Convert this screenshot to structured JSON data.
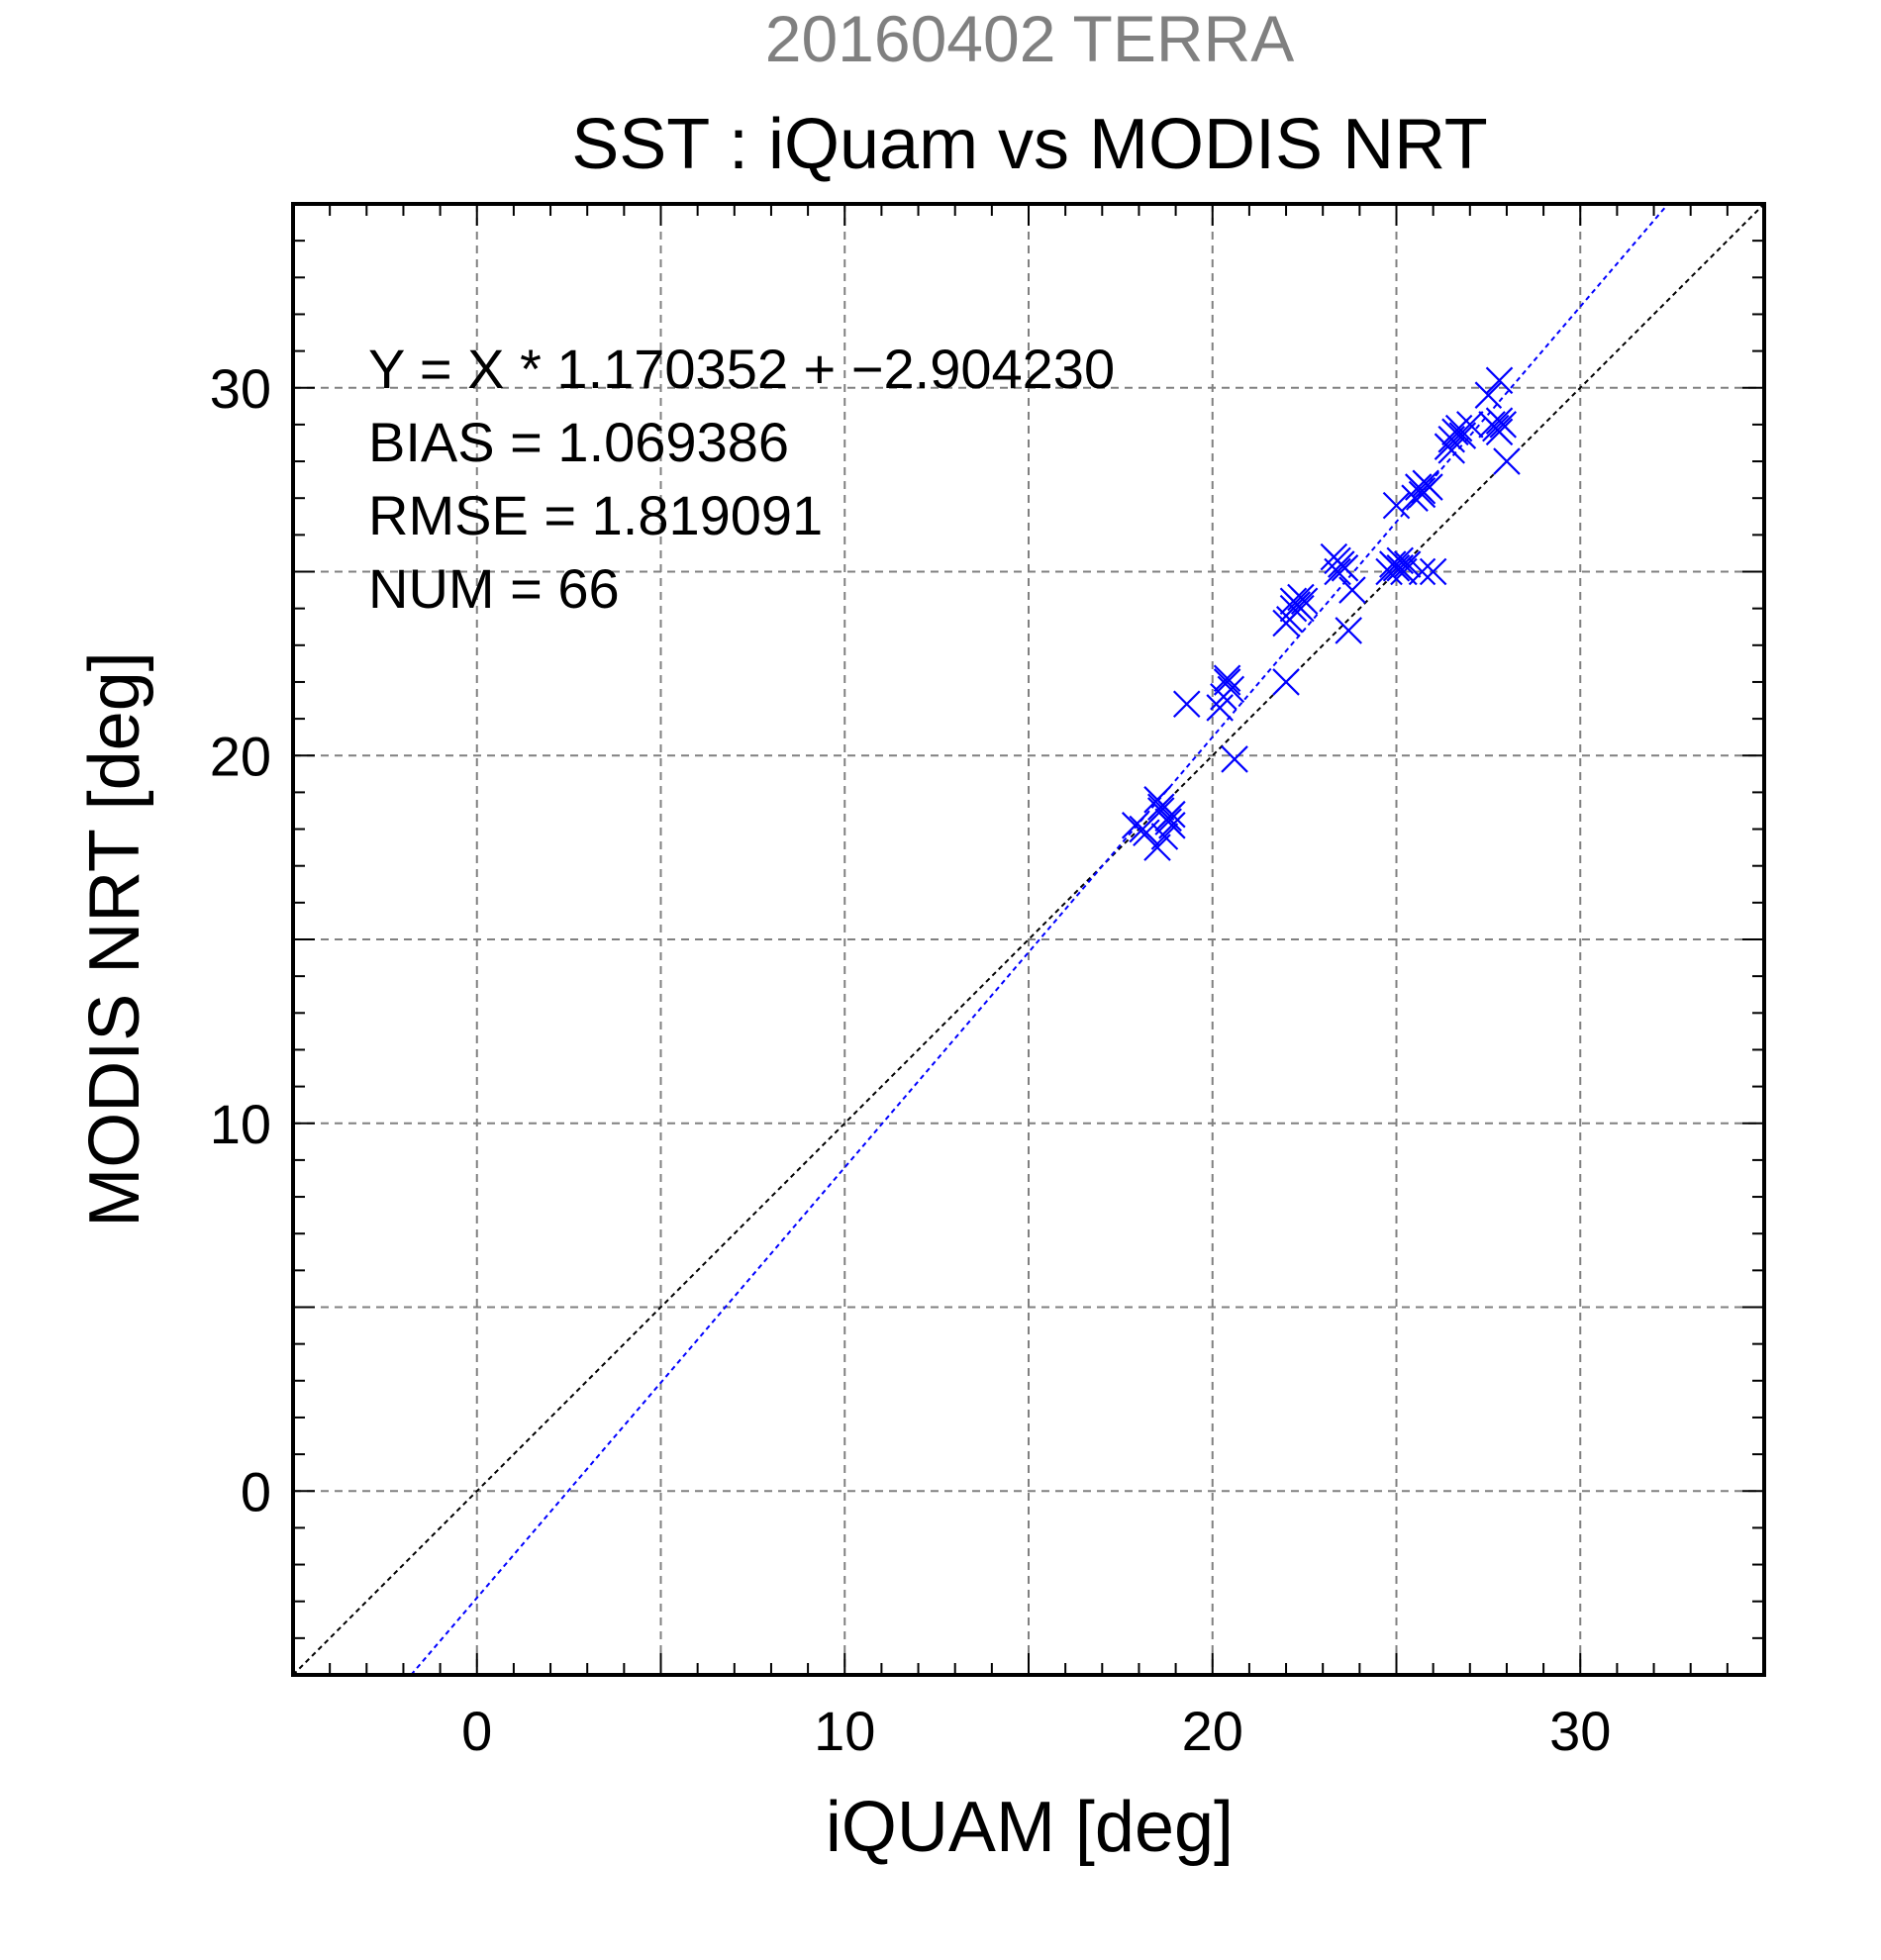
{
  "chart_data": {
    "type": "scatter",
    "title_top": "20160402 TERRA",
    "title": "SST : iQuam vs MODIS NRT",
    "xlabel": "iQUAM [deg]",
    "ylabel": "MODIS NRT [deg]",
    "xlim": [
      -5,
      35
    ],
    "ylim": [
      -5,
      35
    ],
    "grid": true,
    "x_ticks": [
      0,
      10,
      20,
      30
    ],
    "y_ticks": [
      0,
      10,
      20,
      30
    ],
    "grid_x": [
      0,
      5,
      10,
      15,
      20,
      25,
      30
    ],
    "grid_y": [
      0,
      5,
      10,
      15,
      20,
      25,
      30
    ],
    "stats": [
      "Y = X * 1.170352 + −2.904230",
      "BIAS = 1.069386",
      "RMSE = 1.819091",
      "NUM = 66"
    ],
    "lines": [
      {
        "name": "1:1",
        "slope": 1.0,
        "intercept": 0.0,
        "color": "#000000"
      },
      {
        "name": "fit",
        "slope": 1.170352,
        "intercept": -2.90423,
        "color": "#0000ff"
      }
    ],
    "marker_color": "#0000ff",
    "points": [
      [
        17.9,
        18.1
      ],
      [
        18.1,
        18.0
      ],
      [
        18.2,
        17.9
      ],
      [
        18.5,
        18.8
      ],
      [
        18.6,
        18.5
      ],
      [
        18.5,
        17.5
      ],
      [
        18.7,
        17.8
      ],
      [
        18.8,
        18.3
      ],
      [
        18.9,
        18.4
      ],
      [
        18.9,
        18.1
      ],
      [
        18.8,
        18.2
      ],
      [
        19.3,
        21.4
      ],
      [
        20.2,
        21.3
      ],
      [
        20.4,
        22.0
      ],
      [
        20.5,
        21.8
      ],
      [
        20.4,
        22.1
      ],
      [
        20.6,
        19.9
      ],
      [
        22.0,
        23.6
      ],
      [
        22.0,
        22.0
      ],
      [
        22.2,
        24.2
      ],
      [
        22.3,
        24.1
      ],
      [
        22.4,
        24.3
      ],
      [
        22.4,
        24.0
      ],
      [
        22.5,
        24.2
      ],
      [
        22.2,
        24.0
      ],
      [
        23.3,
        25.4
      ],
      [
        23.4,
        25.3
      ],
      [
        23.5,
        25.2
      ],
      [
        23.6,
        25.1
      ],
      [
        23.4,
        25.0
      ],
      [
        23.7,
        23.4
      ],
      [
        23.8,
        24.5
      ],
      [
        25.0,
        26.8
      ],
      [
        24.9,
        25.2
      ],
      [
        25.0,
        25.1
      ],
      [
        25.1,
        25.3
      ],
      [
        25.2,
        25.0
      ],
      [
        25.3,
        25.2
      ],
      [
        25.1,
        25.1
      ],
      [
        25.6,
        27.3
      ],
      [
        25.7,
        27.2
      ],
      [
        25.8,
        27.4
      ],
      [
        25.9,
        27.3
      ],
      [
        25.7,
        27.1
      ],
      [
        25.7,
        25.0
      ],
      [
        26.0,
        25.0
      ],
      [
        26.4,
        28.4
      ],
      [
        26.5,
        28.6
      ],
      [
        26.6,
        28.8
      ],
      [
        26.7,
        28.9
      ],
      [
        26.5,
        28.3
      ],
      [
        27.0,
        29.0
      ],
      [
        27.5,
        29.8
      ],
      [
        27.8,
        30.2
      ],
      [
        27.6,
        29.0
      ],
      [
        27.7,
        28.9
      ],
      [
        27.8,
        29.1
      ],
      [
        27.9,
        29.0
      ],
      [
        27.8,
        28.8
      ],
      [
        28.0,
        28.0
      ],
      [
        22.1,
        23.7
      ],
      [
        20.3,
        21.6
      ],
      [
        25.5,
        27.0
      ],
      [
        26.8,
        28.7
      ],
      [
        18.6,
        18.6
      ],
      [
        24.8,
        25.0
      ]
    ]
  }
}
